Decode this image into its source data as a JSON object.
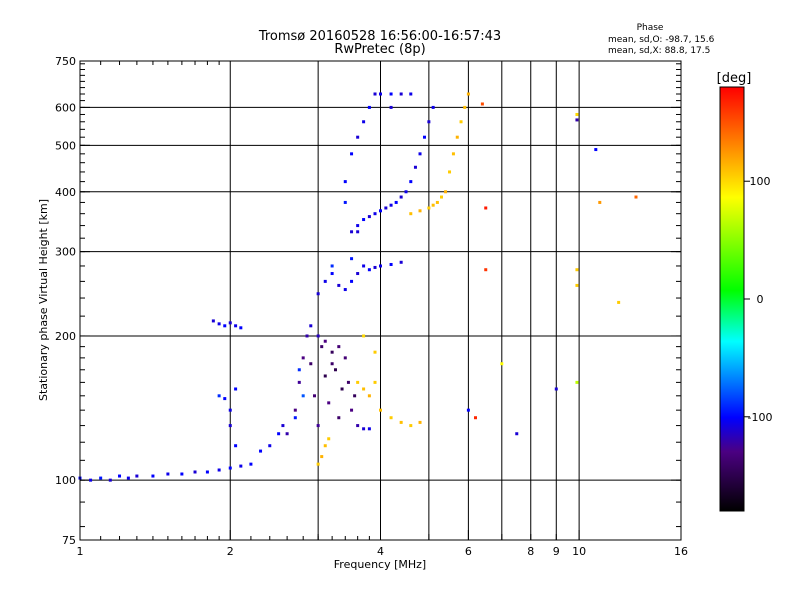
{
  "chart_data": {
    "type": "scatter",
    "title": "Tromsø 20160528 16:56:00-16:57:43",
    "subtitle": "RwPretec (8p)",
    "xlabel": "Frequency [MHz]",
    "ylabel": "Stationary phase Virtual Height [km]",
    "x_scale": "log",
    "y_scale": "log",
    "xlim": [
      1,
      16
    ],
    "ylim": [
      75,
      750
    ],
    "x_ticks": [
      1,
      2,
      4,
      6,
      10,
      16
    ],
    "x_minor_ticks": [
      3,
      5,
      7,
      8,
      9
    ],
    "y_ticks": [
      75,
      100,
      200,
      300,
      400,
      500,
      600,
      750
    ],
    "grid": true,
    "phase_info": {
      "title": "Phase",
      "line_o": "mean, sd,O: -98.7, 15.6",
      "line_x": "mean, sd,X:  88.8, 17.5"
    },
    "colorbar": {
      "label": "[deg]",
      "range": [
        -180,
        180
      ],
      "ticks": [
        100,
        0,
        -100
      ]
    },
    "series": [
      {
        "points": [
          [
            1.0,
            101,
            -100
          ],
          [
            1.05,
            100,
            -105
          ],
          [
            1.1,
            101,
            -95
          ],
          [
            1.15,
            100,
            -110
          ],
          [
            1.2,
            102,
            -100
          ],
          [
            1.25,
            101,
            -105
          ],
          [
            1.3,
            102,
            -110
          ],
          [
            1.4,
            102,
            -100
          ],
          [
            1.5,
            103,
            -105
          ],
          [
            1.6,
            103,
            -100
          ],
          [
            1.7,
            104,
            -110
          ],
          [
            1.8,
            104,
            -100
          ],
          [
            1.9,
            105,
            -105
          ],
          [
            2.0,
            106,
            -100
          ],
          [
            2.1,
            107,
            -105
          ],
          [
            2.2,
            108,
            -100
          ],
          [
            2.3,
            115,
            -100
          ],
          [
            2.4,
            118,
            -105
          ],
          [
            2.5,
            125,
            -100
          ],
          [
            2.55,
            130,
            -110
          ]
        ]
      },
      {
        "points": [
          [
            1.85,
            215,
            -110
          ],
          [
            1.9,
            212,
            -105
          ],
          [
            1.95,
            210,
            -100
          ],
          [
            2.0,
            213,
            -110
          ],
          [
            2.05,
            210,
            -105
          ],
          [
            2.1,
            208,
            -100
          ],
          [
            1.95,
            148,
            -100
          ],
          [
            2.0,
            140,
            -105
          ],
          [
            2.05,
            155,
            -100
          ],
          [
            2.0,
            130,
            -110
          ],
          [
            2.05,
            118,
            -100
          ],
          [
            1.9,
            150,
            -90
          ]
        ]
      },
      {
        "points": [
          [
            2.6,
            125,
            -120
          ],
          [
            2.7,
            140,
            -130
          ],
          [
            2.75,
            160,
            -125
          ],
          [
            2.8,
            180,
            -130
          ],
          [
            2.85,
            200,
            -120
          ],
          [
            2.9,
            175,
            -140
          ],
          [
            2.95,
            150,
            -135
          ],
          [
            3.0,
            130,
            -125
          ],
          [
            3.05,
            190,
            -140
          ],
          [
            3.1,
            165,
            -150
          ],
          [
            3.15,
            145,
            -130
          ],
          [
            3.2,
            185,
            -145
          ],
          [
            3.25,
            170,
            -150
          ],
          [
            3.3,
            135,
            -140
          ],
          [
            3.35,
            155,
            -150
          ],
          [
            3.4,
            180,
            -135
          ],
          [
            3.45,
            160,
            -140
          ],
          [
            3.5,
            140,
            -130
          ],
          [
            3.55,
            150,
            -145
          ],
          [
            3.6,
            130,
            -120
          ],
          [
            3.7,
            128,
            -110
          ],
          [
            3.8,
            128,
            -105
          ],
          [
            2.9,
            210,
            -110
          ],
          [
            3.0,
            200,
            -115
          ],
          [
            3.1,
            195,
            -130
          ],
          [
            3.2,
            175,
            -140
          ],
          [
            3.3,
            190,
            -135
          ],
          [
            2.75,
            170,
            -90
          ],
          [
            2.8,
            150,
            -80
          ],
          [
            2.7,
            135,
            -95
          ],
          [
            3.0,
            108,
            100
          ],
          [
            3.05,
            112,
            110
          ],
          [
            3.1,
            118,
            105
          ],
          [
            3.15,
            122,
            100
          ],
          [
            3.6,
            160,
            100
          ],
          [
            3.7,
            155,
            105
          ],
          [
            3.8,
            150,
            110
          ],
          [
            3.9,
            185,
            100
          ],
          [
            3.7,
            200,
            95
          ],
          [
            4.0,
            140,
            105
          ],
          [
            4.2,
            135,
            100
          ],
          [
            4.4,
            132,
            105
          ],
          [
            4.6,
            130,
            100
          ],
          [
            4.8,
            132,
            110
          ],
          [
            3.9,
            160,
            100
          ]
        ]
      },
      {
        "points": [
          [
            3.0,
            245,
            -110
          ],
          [
            3.1,
            260,
            -105
          ],
          [
            3.2,
            270,
            -100
          ],
          [
            3.3,
            255,
            -110
          ],
          [
            3.4,
            250,
            -105
          ],
          [
            3.5,
            260,
            -100
          ],
          [
            3.6,
            270,
            -110
          ],
          [
            3.7,
            280,
            -105
          ],
          [
            3.8,
            275,
            -100
          ],
          [
            3.9,
            278,
            -110
          ],
          [
            4.0,
            280,
            -105
          ],
          [
            4.2,
            282,
            -100
          ],
          [
            4.4,
            285,
            -110
          ],
          [
            3.2,
            280,
            -90
          ],
          [
            3.5,
            290,
            -95
          ]
        ]
      },
      {
        "points": [
          [
            3.5,
            330,
            -110
          ],
          [
            3.6,
            340,
            -105
          ],
          [
            3.7,
            350,
            -100
          ],
          [
            3.8,
            355,
            -110
          ],
          [
            3.9,
            360,
            -105
          ],
          [
            4.0,
            365,
            -100
          ],
          [
            4.1,
            370,
            -110
          ],
          [
            4.2,
            375,
            -105
          ],
          [
            4.3,
            380,
            -100
          ],
          [
            4.4,
            390,
            -110
          ],
          [
            4.5,
            400,
            -105
          ],
          [
            4.6,
            420,
            -100
          ],
          [
            4.7,
            450,
            -110
          ],
          [
            4.8,
            480,
            -105
          ],
          [
            4.9,
            520,
            -100
          ],
          [
            5.0,
            560,
            -110
          ],
          [
            5.1,
            600,
            -105
          ],
          [
            3.5,
            480,
            -100
          ],
          [
            3.6,
            520,
            -110
          ],
          [
            3.7,
            560,
            -105
          ],
          [
            3.8,
            600,
            -100
          ],
          [
            3.9,
            640,
            -110
          ],
          [
            4.0,
            640,
            -105
          ],
          [
            4.2,
            640,
            -100
          ],
          [
            4.4,
            640,
            -110
          ],
          [
            4.6,
            640,
            -105
          ],
          [
            3.4,
            380,
            -95
          ],
          [
            3.6,
            330,
            -110
          ],
          [
            3.4,
            420,
            -100
          ],
          [
            4.2,
            600,
            -110
          ]
        ]
      },
      {
        "points": [
          [
            4.6,
            360,
            105
          ],
          [
            4.8,
            365,
            110
          ],
          [
            5.0,
            370,
            100
          ],
          [
            5.2,
            380,
            105
          ],
          [
            5.4,
            400,
            110
          ],
          [
            5.5,
            440,
            100
          ],
          [
            5.6,
            480,
            105
          ],
          [
            5.7,
            520,
            110
          ],
          [
            5.8,
            560,
            100
          ],
          [
            5.9,
            600,
            105
          ],
          [
            6.0,
            640,
            110
          ],
          [
            5.3,
            390,
            100
          ],
          [
            5.1,
            375,
            105
          ]
        ]
      },
      {
        "points": [
          [
            6.4,
            610,
            150
          ],
          [
            6.5,
            370,
            170
          ],
          [
            6.5,
            275,
            160
          ],
          [
            6.2,
            135,
            165
          ],
          [
            6.0,
            140,
            -100
          ],
          [
            7.0,
            175,
            80
          ],
          [
            7.5,
            125,
            -110
          ],
          [
            9.0,
            155,
            -110
          ],
          [
            9.9,
            160,
            60
          ],
          [
            9.9,
            565,
            -120
          ],
          [
            9.9,
            580,
            95
          ],
          [
            9.9,
            275,
            100
          ],
          [
            9.9,
            255,
            100
          ],
          [
            10.8,
            490,
            -100
          ],
          [
            11.0,
            380,
            120
          ],
          [
            12.0,
            235,
            100
          ],
          [
            13.0,
            390,
            140
          ]
        ]
      }
    ]
  }
}
